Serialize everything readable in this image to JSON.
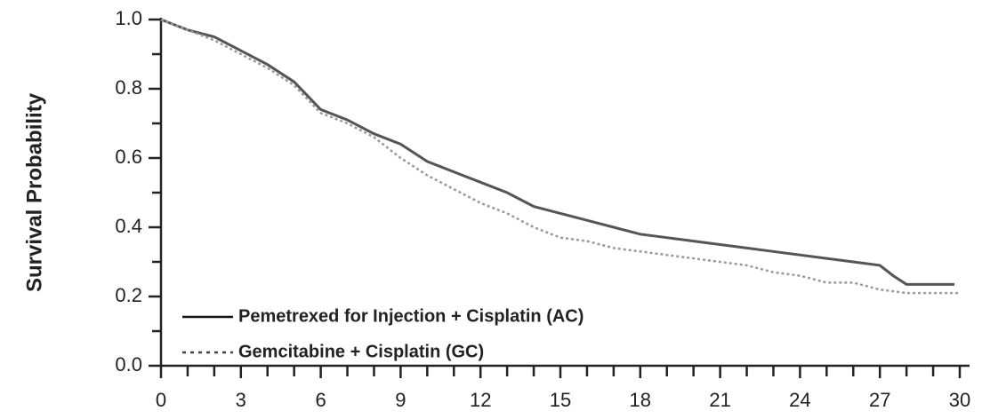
{
  "chart_data": {
    "type": "line",
    "y_label": "Survival Probability",
    "xlim": [
      0,
      30
    ],
    "xticks": [
      0,
      3,
      6,
      9,
      12,
      15,
      18,
      21,
      24,
      27,
      30
    ],
    "ylim": [
      0,
      1
    ],
    "yticks": [
      {
        "value": 0,
        "label": "0.0"
      },
      0.2,
      0.4,
      0.6,
      0.8,
      {
        "value": 1,
        "label": "1.0"
      }
    ],
    "legend": "lower left",
    "series": [
      {
        "name": "Pemetrexed for Injection + Cisplatin (AC)",
        "color": "#555555",
        "style": "solid",
        "x": [
          0,
          1,
          2,
          3,
          4,
          5,
          5.5,
          6,
          7,
          8,
          9,
          10,
          11,
          12,
          13,
          14,
          15,
          16,
          17,
          18,
          19,
          20,
          21,
          22,
          23,
          24,
          25,
          26,
          27,
          27.5,
          28,
          29.8
        ],
        "values": [
          1.0,
          0.97,
          0.95,
          0.91,
          0.87,
          0.82,
          0.78,
          0.74,
          0.71,
          0.67,
          0.64,
          0.59,
          0.56,
          0.53,
          0.5,
          0.46,
          0.44,
          0.42,
          0.4,
          0.38,
          0.37,
          0.36,
          0.35,
          0.34,
          0.33,
          0.32,
          0.31,
          0.3,
          0.29,
          0.26,
          0.235,
          0.235
        ]
      },
      {
        "name": "Gemcitabine + Cisplatin (GC)",
        "color": "#9a9a9a",
        "style": "dotted",
        "x": [
          0,
          1,
          2,
          3,
          4,
          5,
          6,
          7,
          8,
          9,
          10,
          11,
          12,
          13,
          14,
          15,
          16,
          17,
          18,
          19,
          20,
          21,
          22,
          23,
          24,
          25,
          26,
          27,
          28,
          30
        ],
        "values": [
          1.0,
          0.97,
          0.94,
          0.9,
          0.86,
          0.81,
          0.73,
          0.7,
          0.66,
          0.6,
          0.55,
          0.51,
          0.47,
          0.44,
          0.4,
          0.37,
          0.36,
          0.34,
          0.33,
          0.32,
          0.31,
          0.3,
          0.29,
          0.27,
          0.26,
          0.24,
          0.24,
          0.22,
          0.21,
          0.21
        ]
      }
    ]
  }
}
